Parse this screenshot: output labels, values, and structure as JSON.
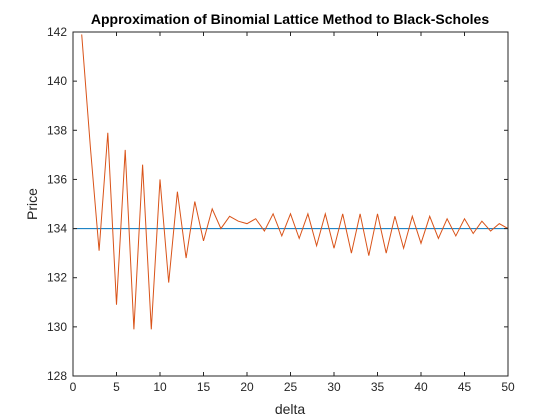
{
  "chart_data": {
    "type": "line",
    "title": "Approximation of Binomial Lattice Method to Black-Scholes",
    "xlabel": "delta",
    "ylabel": "Price",
    "xlim": [
      0,
      50
    ],
    "ylim": [
      128,
      142
    ],
    "xticks": [
      0,
      5,
      10,
      15,
      20,
      25,
      30,
      35,
      40,
      45,
      50
    ],
    "yticks": [
      128,
      130,
      132,
      134,
      136,
      138,
      140,
      142
    ],
    "grid": false,
    "box": true,
    "series": [
      {
        "color": "#D95319",
        "x": [
          1,
          2,
          3,
          4,
          5,
          6,
          7,
          8,
          9,
          10,
          11,
          12,
          13,
          14,
          15,
          16,
          17,
          18,
          19,
          20,
          21,
          22,
          23,
          24,
          25,
          26,
          27,
          28,
          29,
          30,
          31,
          32,
          33,
          34,
          35,
          36,
          37,
          38,
          39,
          40,
          41,
          42,
          43,
          44,
          45,
          46,
          47,
          48,
          49,
          50
        ],
        "values": [
          141.9,
          137.3,
          133.1,
          137.9,
          130.9,
          137.2,
          129.9,
          136.6,
          129.9,
          136.0,
          131.8,
          135.5,
          132.8,
          135.1,
          133.5,
          134.8,
          134.0,
          134.5,
          134.3,
          134.2,
          134.4,
          133.9,
          134.6,
          133.7,
          134.6,
          133.6,
          134.6,
          133.3,
          134.6,
          133.2,
          134.6,
          133.0,
          134.6,
          132.9,
          134.6,
          133.0,
          134.5,
          133.2,
          134.5,
          133.4,
          134.5,
          133.6,
          134.4,
          133.7,
          134.4,
          133.8,
          134.3,
          133.9,
          134.2,
          134.0
        ]
      },
      {
        "color": "#0072BD",
        "x": [
          0,
          50
        ],
        "values": [
          134.0,
          134.0
        ]
      }
    ]
  }
}
